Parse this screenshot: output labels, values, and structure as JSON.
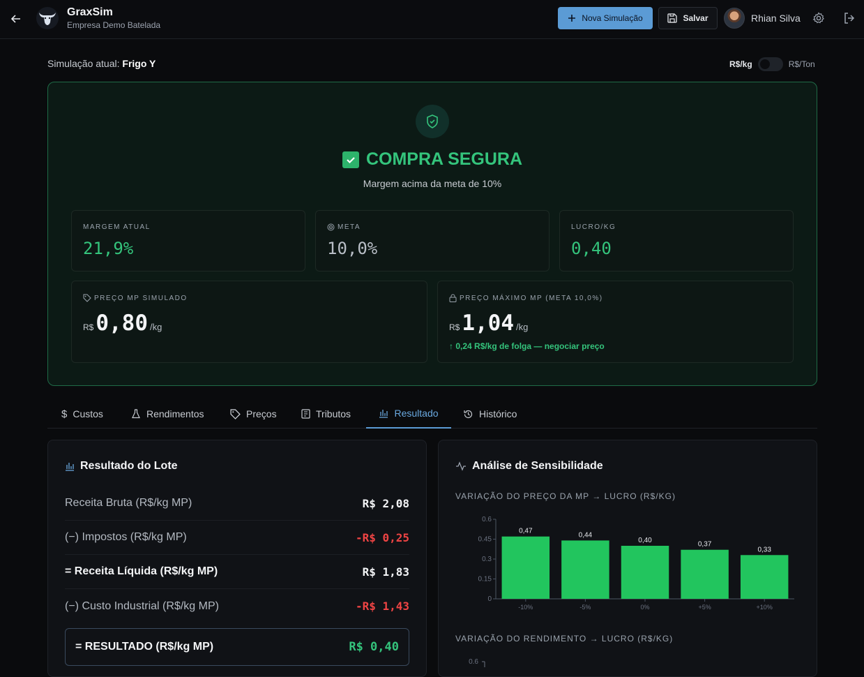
{
  "header": {
    "brand_name": "GraxSim",
    "brand_sub": "Empresa Demo Batelada",
    "new_sim_label": "Nova Simulação",
    "save_label": "Salvar",
    "user_name": "Rhian Silva"
  },
  "subheader": {
    "current_label": "Simulação atual:",
    "current_name": "Frigo Y",
    "unit_left": "R$/kg",
    "unit_right": "R$/Ton"
  },
  "hero": {
    "status": "COMPRA SEGURA",
    "subtitle": "Margem acima da meta de 10%",
    "cards": {
      "margem_label": "MARGEM ATUAL",
      "margem_value": "21,9%",
      "meta_label": "META",
      "meta_value": "10,0%",
      "lucro_label": "LUCRO/KG",
      "lucro_value": "0,40",
      "preco_sim_label": "PREÇO MP SIMULADO",
      "preco_sim_currency": "R$",
      "preco_sim_value": "0,80",
      "preco_sim_unit": "/kg",
      "preco_max_label": "PREÇO MÁXIMO MP (META 10,0%)",
      "preco_max_currency": "R$",
      "preco_max_value": "1,04",
      "preco_max_unit": "/kg",
      "folga_text": "0,24 R$/kg de folga — negociar preço"
    }
  },
  "tabs": [
    {
      "label": "Custos",
      "icon": "dollar-icon"
    },
    {
      "label": "Rendimentos",
      "icon": "flask-icon"
    },
    {
      "label": "Preços",
      "icon": "tag-icon"
    },
    {
      "label": "Tributos",
      "icon": "receipt-icon"
    },
    {
      "label": "Resultado",
      "icon": "bar-chart-icon",
      "active": true
    },
    {
      "label": "Histórico",
      "icon": "history-icon"
    }
  ],
  "resultado": {
    "title": "Resultado do Lote",
    "rows": [
      {
        "label": "Receita Bruta (R$/kg MP)",
        "value": "R$ 2,08"
      },
      {
        "label": "(−) Impostos (R$/kg MP)",
        "value": "-R$ 0,25"
      },
      {
        "label": "= Receita Líquida (R$/kg MP)",
        "value": "R$ 1,83"
      },
      {
        "label": "(−) Custo Industrial (R$/kg MP)",
        "value": "-R$ 1,43"
      }
    ],
    "total_label": "= RESULTADO (R$/kg MP)",
    "total_value": "R$ 0,40"
  },
  "sensibilidade": {
    "title": "Análise de Sensibilidade",
    "section1": "VARIAÇÃO DO PREÇO DA MP → LUCRO (R$/KG)",
    "section2": "VARIAÇÃO DO RENDIMENTO → LUCRO (R$/KG)",
    "second_chart_first_tick": "0.6"
  },
  "colors": {
    "accent": "#5b9bd5",
    "success": "#34c47c",
    "bar": "#22c55e",
    "negative": "#ef4444"
  },
  "chart_data": {
    "type": "bar",
    "categories": [
      "-10%",
      "-5%",
      "0%",
      "+5%",
      "+10%"
    ],
    "values": [
      0.47,
      0.44,
      0.4,
      0.37,
      0.33
    ],
    "data_labels": [
      "0,47",
      "0,44",
      "0,40",
      "0,37",
      "0,33"
    ],
    "yticks": [
      "0",
      "0.15",
      "0.3",
      "0.45",
      "0.6"
    ],
    "ylim": [
      0,
      0.6
    ],
    "grid": false
  }
}
